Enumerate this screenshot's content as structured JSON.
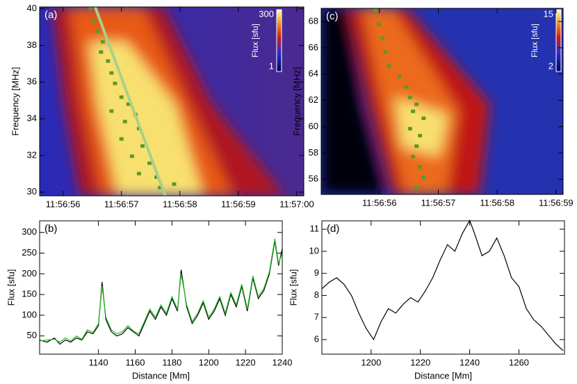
{
  "chart_data": [
    {
      "type": "heatmap",
      "panel_label": "(a)",
      "y_label": "Frequency [MHz]",
      "xlim": [
        43015.6,
        43020.12
      ],
      "ylim": [
        29.8,
        40.1
      ],
      "xticks": [
        {
          "value": 43016,
          "label": "11:56:56"
        },
        {
          "value": 43017,
          "label": "11:56:57"
        },
        {
          "value": 43018,
          "label": "11:56:58"
        },
        {
          "value": 43019,
          "label": "11:56:59"
        },
        {
          "value": 43020,
          "label": "11:57:00"
        }
      ],
      "yticks": [
        30,
        32,
        34,
        36,
        38,
        40
      ],
      "colorbar": {
        "label": "Flux [sfu]",
        "lim": [
          1,
          300
        ],
        "ticks": [
          1,
          300
        ],
        "log": true
      },
      "series": [
        {
          "color": "#5a9a2a",
          "x": [
            43016.47,
            43016.53,
            43016.59,
            43016.68,
            43016.65,
            43016.77,
            43016.83,
            43016.89,
            43017.0,
            43017.12,
            43016.83,
            43017.24,
            43017.06,
            43017.3,
            43017.0,
            43017.36,
            43017.18,
            43017.48,
            43017.3,
            43017.6,
            43017.66,
            43017.9
          ],
          "values": [
            40.02,
            39.34,
            38.77,
            38.2,
            37.64,
            37.15,
            36.5,
            35.93,
            35.18,
            34.8,
            34.42,
            34.23,
            33.85,
            33.47,
            32.9,
            32.52,
            31.96,
            31.58,
            31.01,
            30.82,
            30.25,
            30.44
          ]
        },
        {
          "color": "#a8d08a",
          "x": [
            43016.55,
            43017.75
          ],
          "values": [
            40.1,
            29.8
          ]
        }
      ]
    },
    {
      "type": "line",
      "panel_label": "(b)",
      "x_label": "Distance [Mm]",
      "y_label": "Flux [sfu]",
      "xlim": [
        1108,
        1240
      ],
      "ylim": [
        6,
        328
      ],
      "xticks": [
        1140,
        1160,
        1180,
        1200,
        1220,
        1240
      ],
      "yticks": [
        50,
        100,
        150,
        200,
        250,
        300
      ],
      "x": [
        1108,
        1112,
        1116,
        1119,
        1122,
        1125,
        1128,
        1131,
        1134,
        1137,
        1140,
        1142,
        1144,
        1147,
        1150,
        1153,
        1156,
        1159,
        1162,
        1165,
        1168,
        1171,
        1174,
        1177,
        1180,
        1183,
        1185,
        1188,
        1191,
        1194,
        1197,
        1200,
        1203,
        1206,
        1209,
        1212,
        1215,
        1218,
        1221,
        1224,
        1227,
        1230,
        1233,
        1236,
        1238,
        1240
      ],
      "series": [
        {
          "color": "#000000",
          "values": [
            40,
            35,
            45,
            30,
            40,
            35,
            45,
            40,
            60,
            55,
            75,
            180,
            90,
            60,
            50,
            55,
            70,
            60,
            50,
            80,
            110,
            90,
            120,
            100,
            140,
            110,
            210,
            120,
            80,
            100,
            130,
            90,
            110,
            140,
            100,
            150,
            120,
            170,
            110,
            190,
            140,
            160,
            200,
            280,
            220,
            260
          ]
        },
        {
          "color": "#22bb22",
          "values": [
            38,
            40,
            42,
            35,
            45,
            38,
            50,
            42,
            65,
            58,
            80,
            170,
            95,
            65,
            55,
            60,
            75,
            62,
            55,
            85,
            115,
            95,
            125,
            105,
            145,
            115,
            200,
            125,
            85,
            105,
            135,
            95,
            115,
            145,
            105,
            155,
            125,
            175,
            115,
            195,
            145,
            165,
            205,
            285,
            225,
            250
          ]
        }
      ]
    },
    {
      "type": "heatmap",
      "panel_label": "(c)",
      "y_label": "Frequency [MHz]",
      "xlim": [
        43015.01,
        43019.12
      ],
      "ylim": [
        54.85,
        69
      ],
      "xticks": [
        {
          "value": 43016,
          "label": "11:56:56"
        },
        {
          "value": 43017,
          "label": "11:56:57"
        },
        {
          "value": 43018,
          "label": "11:56:58"
        },
        {
          "value": 43019,
          "label": "11:56:59"
        }
      ],
      "yticks": [
        56,
        58,
        60,
        62,
        64,
        66,
        68
      ],
      "colorbar": {
        "label": "Flux [sfu]",
        "lim": [
          2,
          15
        ],
        "ticks": [
          2,
          15
        ],
        "log": true
      },
      "series": [
        {
          "color": "#5a9a2a",
          "x": [
            43015.93,
            43015.99,
            43016.05,
            43016.1,
            43016.16,
            43016.34,
            43016.46,
            43016.52,
            43016.63,
            43016.57,
            43016.75,
            43016.52,
            43016.69,
            43016.63,
            43016.57,
            43016.69,
            43016.75,
            43016.63
          ],
          "values": [
            68.84,
            67.78,
            66.72,
            65.67,
            64.61,
            63.81,
            63.02,
            62.23,
            61.7,
            61.17,
            60.64,
            59.85,
            59.32,
            58.52,
            57.73,
            56.94,
            56.14,
            55.35
          ]
        }
      ]
    },
    {
      "type": "line",
      "panel_label": "(d)",
      "x_label": "Distance [Mm]",
      "y_label": "Flux [sfu]",
      "xlim": [
        1180,
        1278.5
      ],
      "ylim": [
        5.34,
        11.38
      ],
      "xticks": [
        1200,
        1220,
        1240,
        1260
      ],
      "yticks": [
        6,
        7,
        8,
        9,
        10,
        11
      ],
      "x": [
        1180,
        1183,
        1186,
        1189,
        1192,
        1195,
        1198,
        1201,
        1204,
        1207,
        1210,
        1213,
        1216,
        1219,
        1222,
        1225,
        1228,
        1231,
        1234,
        1237,
        1240,
        1242,
        1245,
        1248,
        1251,
        1254,
        1257,
        1260,
        1263,
        1266,
        1269,
        1272,
        1275,
        1278
      ],
      "series": [
        {
          "color": "#000000",
          "values": [
            8.3,
            8.6,
            8.8,
            8.5,
            8.0,
            7.2,
            6.5,
            6.0,
            6.8,
            7.4,
            7.2,
            7.6,
            7.9,
            7.7,
            8.2,
            8.8,
            9.6,
            10.3,
            10.0,
            10.8,
            11.4,
            10.8,
            9.8,
            10.0,
            10.6,
            9.8,
            8.8,
            8.4,
            7.4,
            6.9,
            6.6,
            6.2,
            5.8,
            5.5
          ]
        }
      ]
    }
  ]
}
